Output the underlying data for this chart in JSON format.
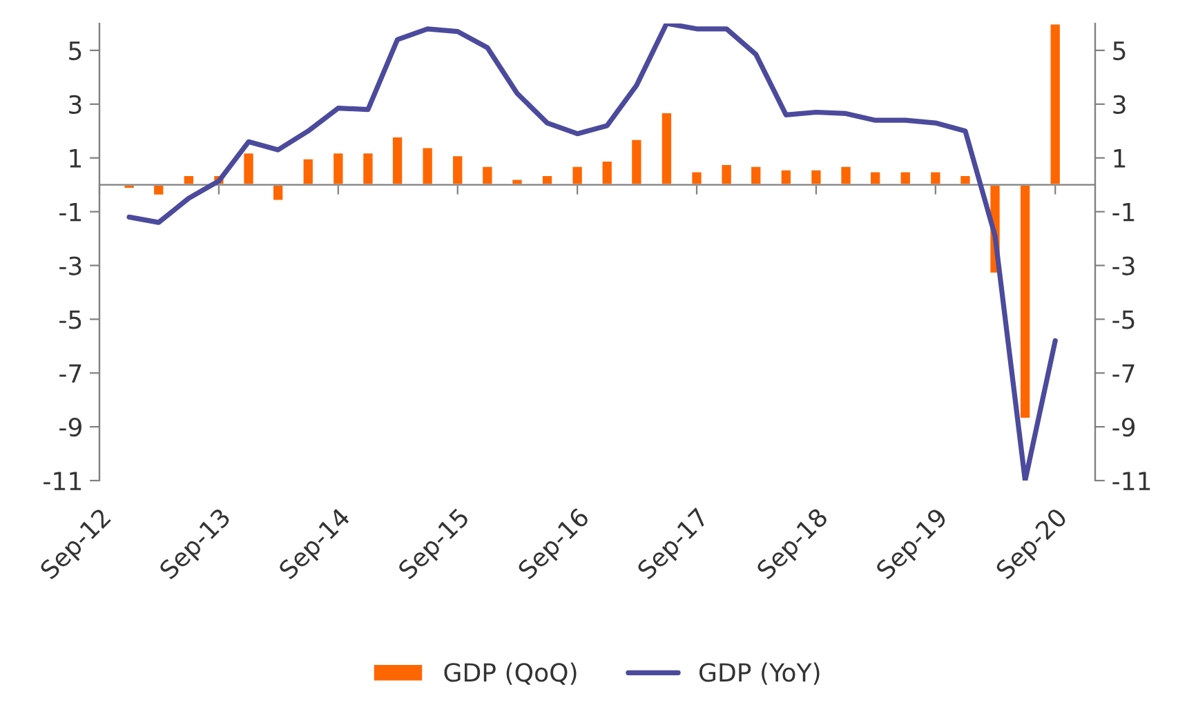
{
  "chart_data": {
    "type": "bar",
    "x": [
      "2012-12",
      "2013-03",
      "2013-06",
      "2013-09",
      "2013-12",
      "2014-03",
      "2014-06",
      "2014-09",
      "2014-12",
      "2015-03",
      "2015-06",
      "2015-09",
      "2015-12",
      "2016-03",
      "2016-06",
      "2016-09",
      "2016-12",
      "2017-03",
      "2017-06",
      "2017-09",
      "2017-12",
      "2018-03",
      "2018-06",
      "2018-09",
      "2018-12",
      "2019-03",
      "2019-06",
      "2019-09",
      "2019-12",
      "2020-03",
      "2020-06",
      "2020-09"
    ],
    "series": [
      {
        "name": "GDP (QoQ)",
        "color": "#ff6600",
        "values": [
          -0.15,
          -0.4,
          0.36,
          0.36,
          1.2,
          -0.6,
          0.98,
          1.2,
          1.2,
          1.8,
          1.4,
          1.1,
          0.7,
          0.22,
          0.36,
          0.7,
          0.9,
          1.7,
          2.7,
          0.5,
          0.77,
          0.7,
          0.57,
          0.57,
          0.7,
          0.5,
          0.5,
          0.5,
          0.36,
          -3.3,
          -8.7,
          6
        ]
      },
      {
        "name": "GDP (YoY)",
        "type": "line",
        "color": "#4b4a9c",
        "values": [
          -1.2,
          -1.4,
          -0.5,
          0.14,
          1.6,
          1.3,
          2.0,
          2.85,
          2.8,
          5.4,
          5.8,
          5.7,
          5.1,
          3.4,
          2.3,
          1.9,
          2.2,
          3.7,
          6.0,
          5.8,
          5.8,
          4.85,
          2.6,
          2.7,
          2.65,
          2.4,
          2.4,
          2.3,
          2.0,
          -1.9,
          -11.0,
          -5.8
        ]
      }
    ],
    "xlim": [
      "2012-09",
      "2021-01"
    ],
    "xticks": [
      {
        "value": "2012-09",
        "label": "Sep-12"
      },
      {
        "value": "2013-09",
        "label": "Sep-13"
      },
      {
        "value": "2014-09",
        "label": "Sep-14"
      },
      {
        "value": "2015-09",
        "label": "Sep-15"
      },
      {
        "value": "2016-09",
        "label": "Sep-16"
      },
      {
        "value": "2017-09",
        "label": "Sep-17"
      },
      {
        "value": "2018-09",
        "label": "Sep-18"
      },
      {
        "value": "2019-09",
        "label": "Sep-19"
      },
      {
        "value": "2020-09",
        "label": "Sep-20"
      }
    ],
    "ylim": [
      -11,
      6
    ],
    "yticks": [
      -11,
      -9,
      -7,
      -5,
      -3,
      -1,
      1,
      3,
      5
    ],
    "y2lim": [
      -11,
      6
    ],
    "y2ticks": [
      -11,
      -9,
      -7,
      -5,
      -3,
      -1,
      1,
      3,
      5
    ],
    "grid": false,
    "legend": "bottom",
    "marker": "none",
    "line_style": "solid"
  }
}
